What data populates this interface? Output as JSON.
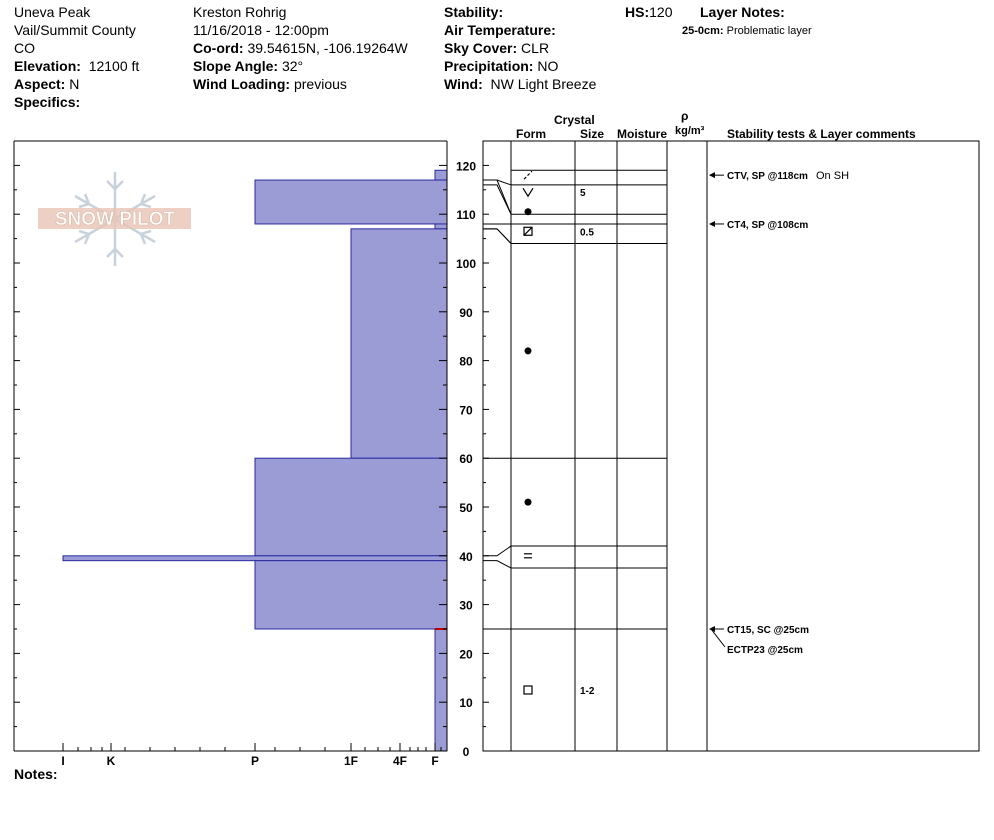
{
  "header": {
    "location": "Uneva Peak",
    "region": "Vail/Summit County",
    "state": "CO",
    "elevation_label": "Elevation:",
    "elevation_value": "12100 ft",
    "aspect_label": "Aspect:",
    "aspect_value": "N",
    "specifics_label": "Specifics:",
    "observer": "Kreston Rohrig",
    "datetime": "11/16/2018 - 12:00pm",
    "coord_label": "Co-ord:",
    "coord_value": "39.54615N, -106.19264W",
    "slope_label": "Slope Angle:",
    "slope_value": "32°",
    "wind_loading_label": "Wind Loading:",
    "wind_loading_value": "previous",
    "stability_label": "Stability:",
    "air_temp_label": "Air Temperature:",
    "sky_label": "Sky Cover:",
    "sky_value": "CLR",
    "precip_label": "Precipitation:",
    "precip_value": "NO",
    "wind_label": "Wind:",
    "wind_value": "NW Light Breeze",
    "hs_label": "HS:",
    "hs_value": "120",
    "layer_notes_label": "Layer Notes:",
    "layer_note_range": "25-0cm:",
    "layer_note_text": "Problematic layer"
  },
  "logo_text": "SNOW PILOT",
  "notes_label": "Notes:",
  "columns": {
    "crystal": "Crystal",
    "form": "Form",
    "size": "Size",
    "moisture": "Moisture",
    "rho": "ρ",
    "density_unit": "kg/m³",
    "stability": "Stability tests & Layer comments"
  },
  "chart_data": {
    "type": "snow-profile",
    "y_axis": {
      "range": [
        0,
        120
      ],
      "ticks": [
        0,
        10,
        20,
        30,
        40,
        50,
        60,
        70,
        80,
        90,
        100,
        110,
        120
      ]
    },
    "hardness_scale": [
      "I",
      "K",
      "P",
      "1F",
      "4F",
      "F"
    ],
    "hardness_layers": [
      {
        "bottom": 117,
        "top": 119,
        "hardness": "F"
      },
      {
        "bottom": 108,
        "top": 117,
        "hardness": "P"
      },
      {
        "bottom": 107,
        "top": 108,
        "hardness": "F"
      },
      {
        "bottom": 60,
        "top": 107,
        "hardness": "1F"
      },
      {
        "bottom": 40,
        "top": 60,
        "hardness": "P"
      },
      {
        "bottom": 39,
        "top": 40,
        "hardness": "I"
      },
      {
        "bottom": 25,
        "top": 39,
        "hardness": "P"
      },
      {
        "bottom": 0,
        "top": 25,
        "hardness": "F"
      }
    ],
    "layer_boundaries": [
      119,
      117,
      116,
      110,
      108,
      107,
      104,
      60,
      42,
      40,
      39,
      37.5,
      25
    ],
    "crystal_layers": [
      {
        "mid": 118,
        "form": "decomposing-fragments",
        "size": ""
      },
      {
        "mid": 114.5,
        "form": "surface-hoar",
        "size": "5"
      },
      {
        "mid": 110.5,
        "form": "rounded-grains",
        "size": ""
      },
      {
        "mid": 106.5,
        "form": "faceted-rounded",
        "size": "0.5"
      },
      {
        "mid": 82,
        "form": "rounded-grains",
        "size": ""
      },
      {
        "mid": 51,
        "form": "rounded-grains",
        "size": ""
      },
      {
        "mid": 40,
        "form": "crust",
        "size": ""
      },
      {
        "mid": 12.5,
        "form": "faceted-crystals",
        "size": "1-2"
      }
    ],
    "stability_tests": [
      {
        "depth": 118,
        "text": "CTV, SP @118cm",
        "comment": "On SH"
      },
      {
        "depth": 108,
        "text": "CT4, SP @108cm",
        "comment": ""
      },
      {
        "depth": 25,
        "text": "CT15, SC @25cm",
        "comment": ""
      },
      {
        "depth": 25,
        "text": "ECTP23 @25cm",
        "comment": ""
      }
    ]
  }
}
